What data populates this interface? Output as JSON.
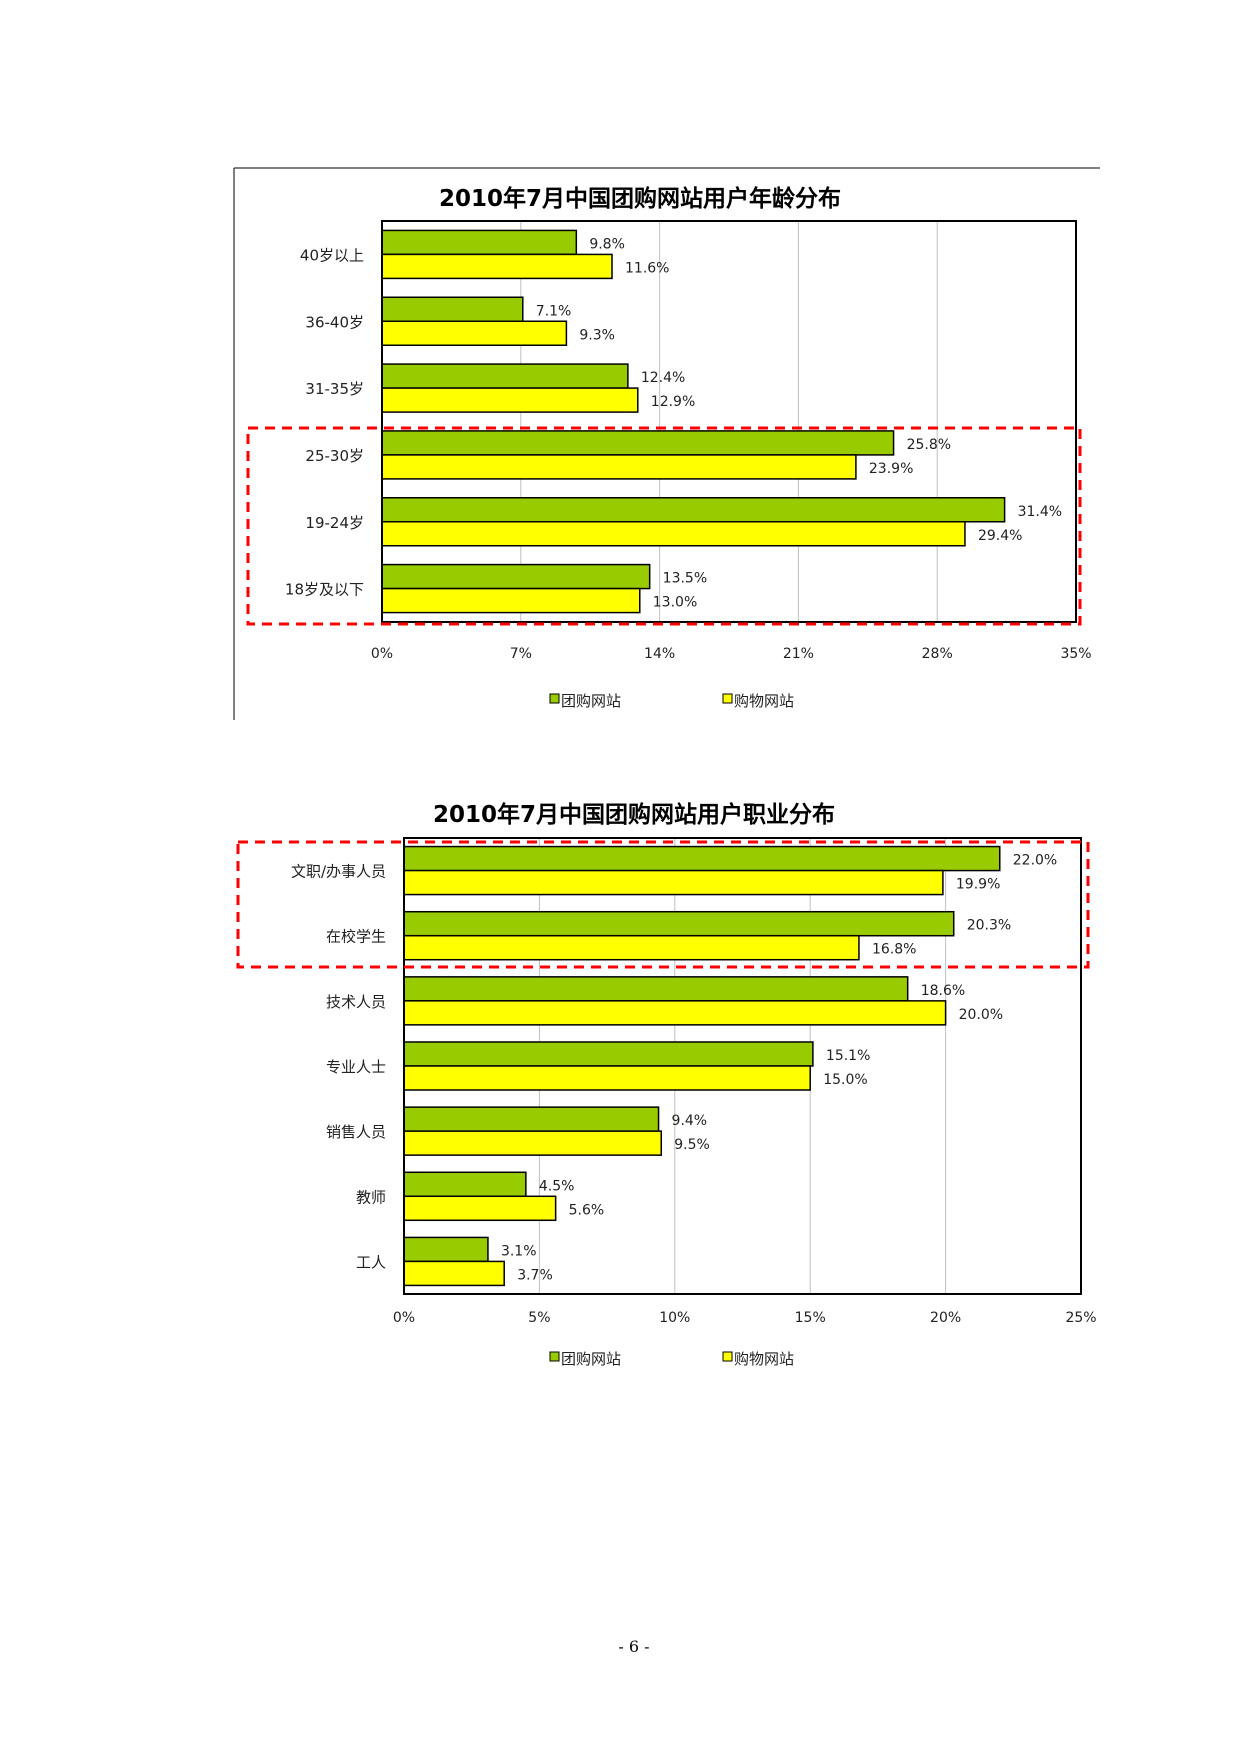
{
  "page_number": "- 6 -",
  "colors": {
    "series1": "#99cc00",
    "series2": "#ffff00",
    "outline": "#000000",
    "highlight": "#ff0000",
    "grid": "#c0c0c0"
  },
  "chart_data": [
    {
      "type": "bar",
      "orientation": "horizontal",
      "title": "2010年7月中国团购网站用户年龄分布",
      "categories": [
        "40岁以上",
        "36-40岁",
        "31-35岁",
        "25-30岁",
        "19-24岁",
        "18岁及以下"
      ],
      "series": [
        {
          "name": "团购网站",
          "values": [
            9.8,
            7.1,
            12.4,
            25.8,
            31.4,
            13.5
          ],
          "labels": [
            "9.8%",
            "7.1%",
            "12.4%",
            "25.8%",
            "31.4%",
            "13.5%"
          ]
        },
        {
          "name": "购物网站",
          "values": [
            11.6,
            9.3,
            12.9,
            23.9,
            29.4,
            13.0
          ],
          "labels": [
            "11.6%",
            "9.3%",
            "12.9%",
            "23.9%",
            "29.4%",
            "13.0%"
          ]
        }
      ],
      "xlim": [
        0,
        35
      ],
      "ticks": [
        "0%",
        "7%",
        "14%",
        "21%",
        "28%",
        "35%"
      ],
      "grid": true,
      "legend": "bottom",
      "highlighted_categories": [
        "25-30岁",
        "19-24岁",
        "18岁及以下"
      ]
    },
    {
      "type": "bar",
      "orientation": "horizontal",
      "title": "2010年7月中国团购网站用户职业分布",
      "categories": [
        "文职/办事人员",
        "在校学生",
        "技术人员",
        "专业人士",
        "销售人员",
        "教师",
        "工人"
      ],
      "series": [
        {
          "name": "团购网站",
          "values": [
            22.0,
            20.3,
            18.6,
            15.1,
            9.4,
            4.5,
            3.1
          ],
          "labels": [
            "22.0%",
            "20.3%",
            "18.6%",
            "15.1%",
            "9.4%",
            "4.5%",
            "3.1%"
          ]
        },
        {
          "name": "购物网站",
          "values": [
            19.9,
            16.8,
            20.0,
            15.0,
            9.5,
            5.6,
            3.7
          ],
          "labels": [
            "19.9%",
            "16.8%",
            "20.0%",
            "15.0%",
            "9.5%",
            "5.6%",
            "3.7%"
          ]
        }
      ],
      "xlim": [
        0,
        25
      ],
      "ticks": [
        "0%",
        "5%",
        "10%",
        "15%",
        "20%",
        "25%"
      ],
      "grid": true,
      "legend": "bottom",
      "highlighted_categories": [
        "文职/办事人员",
        "在校学生"
      ]
    }
  ]
}
